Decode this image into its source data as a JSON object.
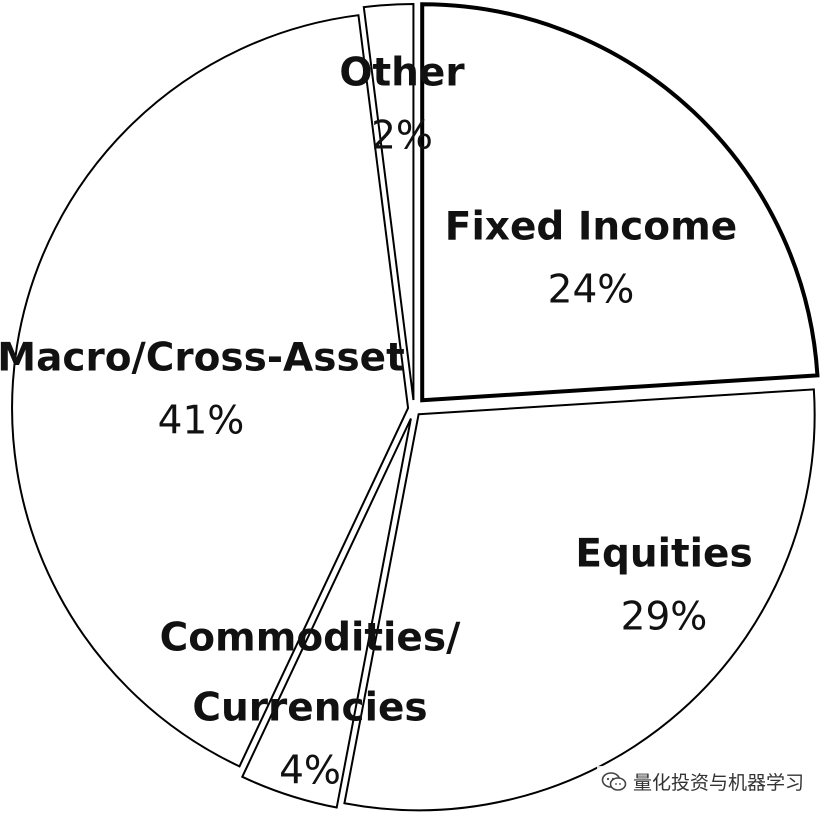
{
  "chart_data": {
    "type": "pie",
    "title": "",
    "slices": [
      {
        "label_lines": [
          "Fixed Income"
        ],
        "percent_label": "24%",
        "value": 24,
        "emphasis": true
      },
      {
        "label_lines": [
          "Equities"
        ],
        "percent_label": "29%",
        "value": 29,
        "emphasis": false
      },
      {
        "label_lines": [
          "Commodities/",
          "Currencies"
        ],
        "percent_label": "4%",
        "value": 4,
        "emphasis": false
      },
      {
        "label_lines": [
          "Macro/Cross-Asset"
        ],
        "percent_label": "41%",
        "value": 41,
        "emphasis": false
      },
      {
        "label_lines": [
          "Other"
        ],
        "percent_label": "2%",
        "value": 2,
        "emphasis": false
      }
    ],
    "start_angle_deg": 0,
    "direction": "clockwise",
    "exploded": true,
    "slice_fill": "#ffffff",
    "stroke_color": "#000000",
    "legend": "none"
  },
  "watermark": {
    "text": "量化投资与机器学习",
    "icon": "wechat-icon"
  }
}
